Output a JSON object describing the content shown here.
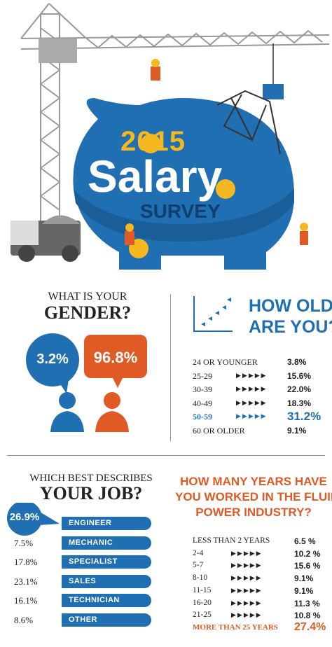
{
  "header": {
    "year": "2015",
    "title": "Salary",
    "subtitle": "SURVEY"
  },
  "gender": {
    "question_line1": "WHAT IS YOUR",
    "question_line2": "GENDER?",
    "female": "3.2%",
    "male": "96.8%"
  },
  "age": {
    "title_line1": "HOW OLD",
    "title_line2": "ARE YOU?",
    "rows": [
      [
        "24 OR YOUNGER",
        "3.8%"
      ],
      [
        "25-29",
        "15.6%"
      ],
      [
        "30-39",
        "22.0%"
      ],
      [
        "40-49",
        "18.3%"
      ],
      [
        "50-59",
        "31.2%"
      ],
      [
        "60 OR OLDER",
        "9.1%"
      ]
    ],
    "highlight": 4
  },
  "job": {
    "question_line1": "WHICH BEST DESCRIBES",
    "question_line2": "YOUR JOB?",
    "rows": [
      [
        "26.9%",
        "ENGINEER"
      ],
      [
        "7.5%",
        "MECHANIC"
      ],
      [
        "17.8%",
        "SPECIALIST"
      ],
      [
        "23.1%",
        "SALES"
      ],
      [
        "16.1%",
        "TECHNICIAN"
      ],
      [
        "8.6%",
        "OTHER"
      ]
    ]
  },
  "years": {
    "title_lines": [
      "HOW MANY YEARS HAVE",
      "YOU WORKED IN THE FLUID",
      "POWER INDUSTRY?"
    ],
    "rows": [
      [
        "LESS THAN 2 YEARS",
        "6.5 %"
      ],
      [
        "2-4",
        "10.2 %"
      ],
      [
        "5-7",
        "15.6 %"
      ],
      [
        "8-10",
        "9.1%"
      ],
      [
        "11-15",
        "9.1%"
      ],
      [
        "16-20",
        "11.3 %"
      ],
      [
        "21-25",
        "10.8 %"
      ],
      [
        "MORE THAN 25 YEARS",
        "27.4%"
      ]
    ],
    "highlight": 7
  }
}
